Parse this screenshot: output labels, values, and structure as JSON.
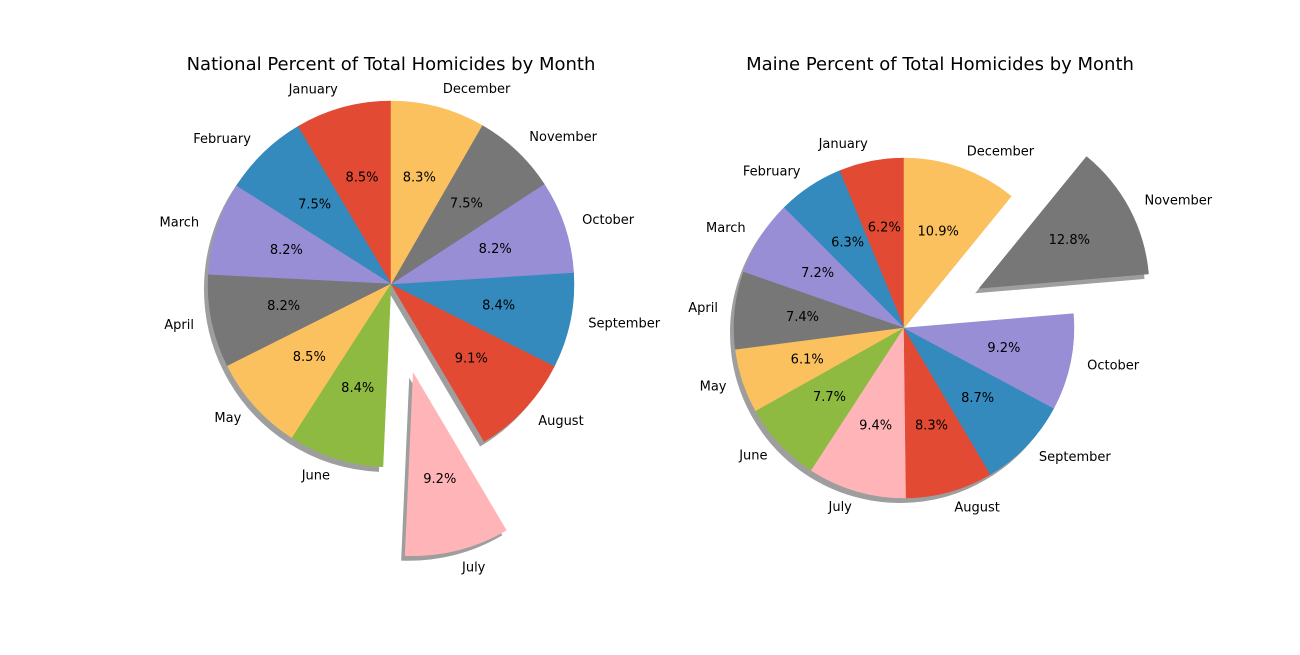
{
  "chart_data": [
    {
      "type": "pie",
      "title": "National Percent of Total Homicides by Month",
      "start_angle_deg": 90,
      "direction": "counterclockwise",
      "shadow": true,
      "slices": [
        {
          "label": "January",
          "value": 8.5,
          "pct_label": "8.5%",
          "color": "#e24a33",
          "explode": 0
        },
        {
          "label": "February",
          "value": 7.5,
          "pct_label": "7.5%",
          "color": "#348abd",
          "explode": 0
        },
        {
          "label": "March",
          "value": 8.2,
          "pct_label": "8.2%",
          "color": "#988ed5",
          "explode": 0
        },
        {
          "label": "April",
          "value": 8.2,
          "pct_label": "8.2%",
          "color": "#777777",
          "explode": 0
        },
        {
          "label": "May",
          "value": 8.5,
          "pct_label": "8.5%",
          "color": "#fbc15e",
          "explode": 0
        },
        {
          "label": "June",
          "value": 8.4,
          "pct_label": "8.4%",
          "color": "#8eba42",
          "explode": 0
        },
        {
          "label": "July",
          "value": 9.2,
          "pct_label": "9.2%",
          "color": "#ffb5b8",
          "explode": 0.5
        },
        {
          "label": "August",
          "value": 9.1,
          "pct_label": "9.1%",
          "color": "#e24a33",
          "explode": 0
        },
        {
          "label": "September",
          "value": 8.4,
          "pct_label": "8.4%",
          "color": "#348abd",
          "explode": 0
        },
        {
          "label": "October",
          "value": 8.2,
          "pct_label": "8.2%",
          "color": "#988ed5",
          "explode": 0
        },
        {
          "label": "November",
          "value": 7.5,
          "pct_label": "7.5%",
          "color": "#777777",
          "explode": 0
        },
        {
          "label": "December",
          "value": 8.3,
          "pct_label": "8.3%",
          "color": "#fbc15e",
          "explode": 0
        }
      ]
    },
    {
      "type": "pie",
      "title": "Maine Percent of Total Homicides by Month",
      "start_angle_deg": 90,
      "direction": "counterclockwise",
      "shadow": true,
      "slices": [
        {
          "label": "January",
          "value": 6.2,
          "pct_label": "6.2%",
          "color": "#e24a33",
          "explode": 0
        },
        {
          "label": "February",
          "value": 6.3,
          "pct_label": "6.3%",
          "color": "#348abd",
          "explode": 0
        },
        {
          "label": "March",
          "value": 7.2,
          "pct_label": "7.2%",
          "color": "#988ed5",
          "explode": 0
        },
        {
          "label": "April",
          "value": 7.4,
          "pct_label": "7.4%",
          "color": "#777777",
          "explode": 0
        },
        {
          "label": "May",
          "value": 6.1,
          "pct_label": "6.1%",
          "color": "#fbc15e",
          "explode": 0
        },
        {
          "label": "June",
          "value": 7.7,
          "pct_label": "7.7%",
          "color": "#8eba42",
          "explode": 0
        },
        {
          "label": "July",
          "value": 9.4,
          "pct_label": "9.4%",
          "color": "#ffb5b8",
          "explode": 0
        },
        {
          "label": "August",
          "value": 8.3,
          "pct_label": "8.3%",
          "color": "#e24a33",
          "explode": 0
        },
        {
          "label": "September",
          "value": 8.7,
          "pct_label": "8.7%",
          "color": "#348abd",
          "explode": 0
        },
        {
          "label": "October",
          "value": 9.2,
          "pct_label": "9.2%",
          "color": "#988ed5",
          "explode": 0
        },
        {
          "label": "November",
          "value": 12.8,
          "pct_label": "12.8%",
          "color": "#777777",
          "explode": 0.5
        },
        {
          "label": "December",
          "value": 10.9,
          "pct_label": "10.9%",
          "color": "#fbc15e",
          "explode": 0
        }
      ]
    }
  ]
}
